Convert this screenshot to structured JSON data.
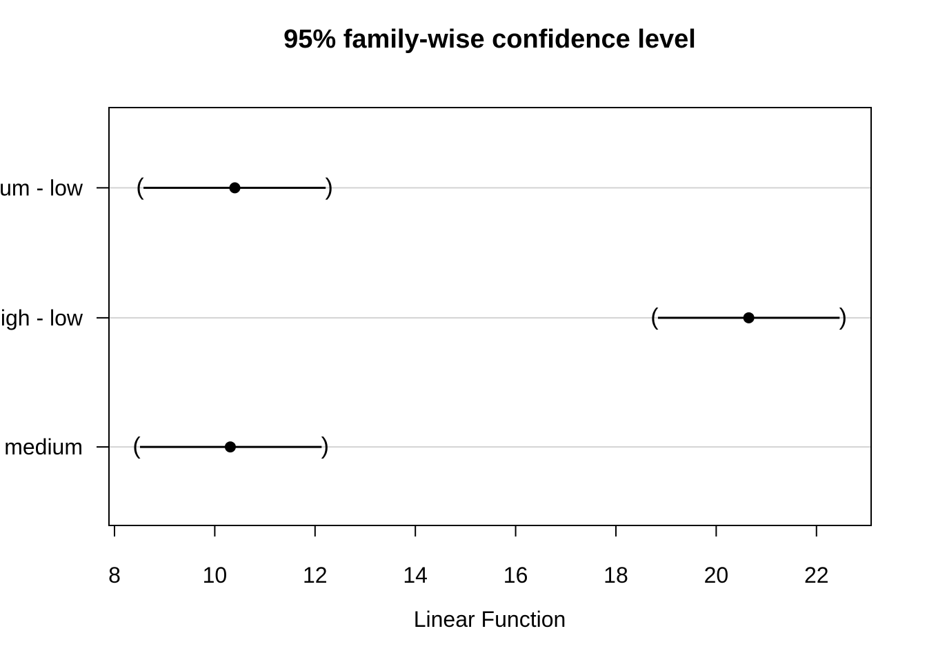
{
  "chart_data": {
    "type": "confidence_interval_plot",
    "title": "95% family-wise confidence level",
    "xlabel": "Linear Function",
    "ylabel": "",
    "x_ticks": [
      8,
      10,
      12,
      14,
      16,
      18,
      20,
      22
    ],
    "xlim": [
      7.89,
      23.09
    ],
    "grid": true,
    "gridline_color": "#d3d3d3",
    "interval_color": "#000000",
    "background_color": "#ffffff",
    "endpoint_glyphs": [
      "(",
      ")"
    ],
    "legend": "none",
    "comparisons": [
      {
        "label": "um - low",
        "estimate": 10.4,
        "lower": 8.51,
        "upper": 12.28
      },
      {
        "label": "igh - low",
        "estimate": 20.65,
        "lower": 18.77,
        "upper": 22.53
      },
      {
        "label": "medium",
        "estimate": 10.31,
        "lower": 8.44,
        "upper": 12.2
      }
    ]
  }
}
